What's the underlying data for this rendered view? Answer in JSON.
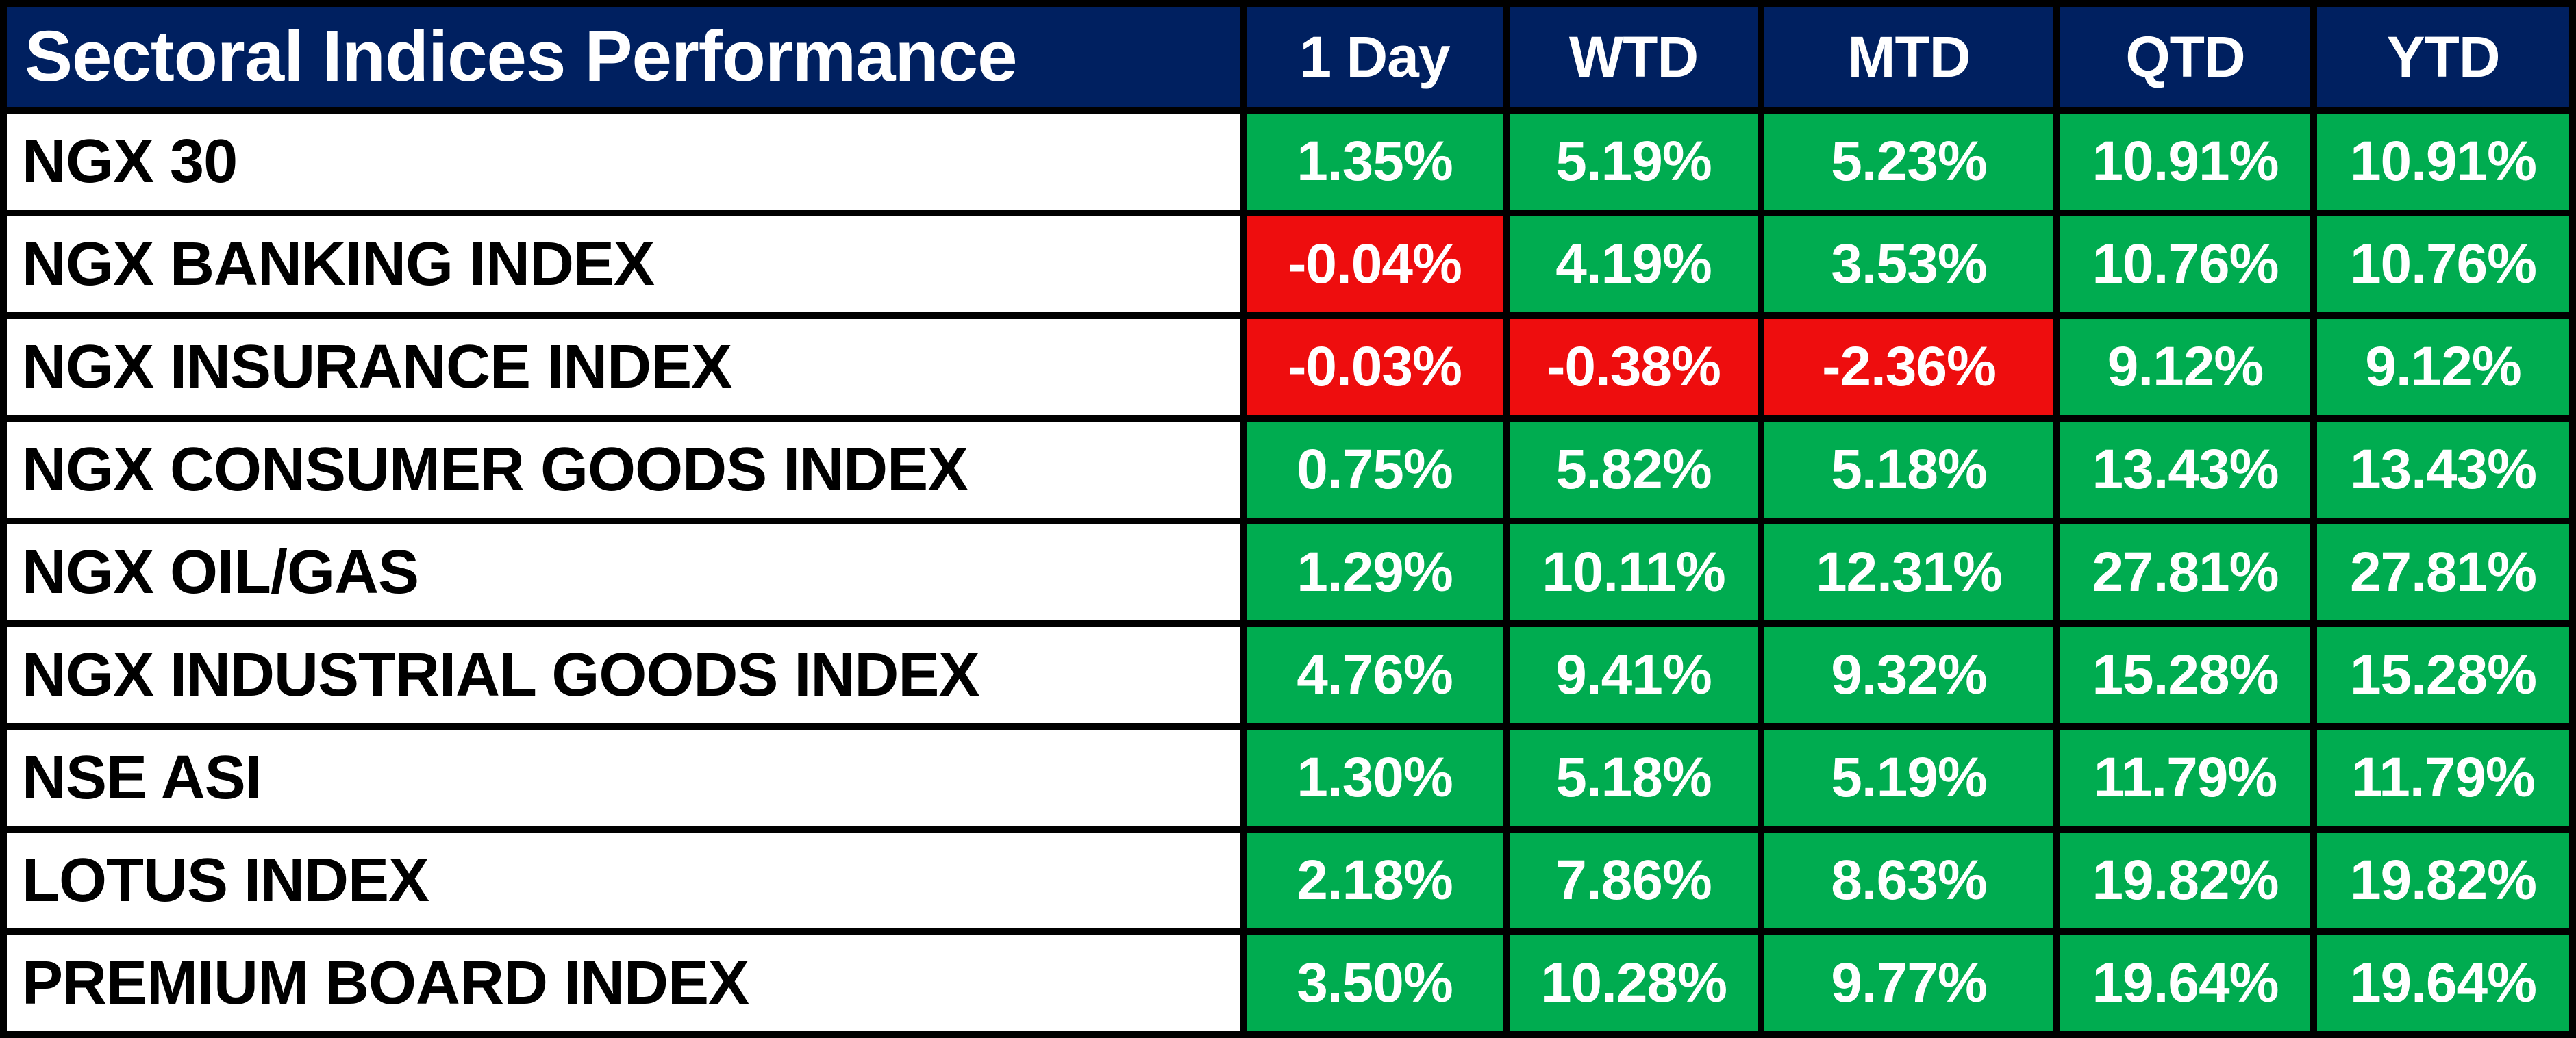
{
  "table": {
    "title": "Sectoral Indices Performance",
    "columns": [
      "1 Day",
      "WTD",
      "MTD",
      "QTD",
      "YTD"
    ],
    "rows": [
      {
        "label": "NGX 30",
        "values": [
          "1.35%",
          "5.19%",
          "5.23%",
          "10.91%",
          "10.91%"
        ]
      },
      {
        "label": "NGX BANKING INDEX",
        "values": [
          "-0.04%",
          "4.19%",
          "3.53%",
          "10.76%",
          "10.76%"
        ]
      },
      {
        "label": "NGX INSURANCE INDEX",
        "values": [
          "-0.03%",
          "-0.38%",
          "-2.36%",
          "9.12%",
          "9.12%"
        ]
      },
      {
        "label": "NGX CONSUMER GOODS INDEX",
        "values": [
          "0.75%",
          "5.82%",
          "5.18%",
          "13.43%",
          "13.43%"
        ]
      },
      {
        "label": "NGX OIL/GAS",
        "values": [
          "1.29%",
          "10.11%",
          "12.31%",
          "27.81%",
          "27.81%"
        ]
      },
      {
        "label": "NGX INDUSTRIAL GOODS INDEX",
        "values": [
          "4.76%",
          "9.41%",
          "9.32%",
          "15.28%",
          "15.28%"
        ]
      },
      {
        "label": "NSE ASI",
        "values": [
          "1.30%",
          "5.18%",
          "5.19%",
          "11.79%",
          "11.79%"
        ]
      },
      {
        "label": "LOTUS INDEX",
        "values": [
          "2.18%",
          "7.86%",
          "8.63%",
          "19.82%",
          "19.82%"
        ]
      },
      {
        "label": "PREMIUM BOARD INDEX",
        "values": [
          "3.50%",
          "10.28%",
          "9.77%",
          "19.64%",
          "19.64%"
        ]
      }
    ],
    "colors": {
      "header_bg": "#002060",
      "header_text": "#ffffff",
      "positive_bg": "#00AC50",
      "negative_bg": "#EE0D0E",
      "value_text": "#ffffff",
      "label_bg": "#ffffff",
      "label_text": "#000000",
      "grid_border": "#000000"
    }
  },
  "chart_data": {
    "type": "table",
    "title": "Sectoral Indices Performance",
    "columns": [
      "1 Day",
      "WTD",
      "MTD",
      "QTD",
      "YTD"
    ],
    "rows": [
      {
        "name": "NGX 30",
        "values_pct": [
          1.35,
          5.19,
          5.23,
          10.91,
          10.91
        ]
      },
      {
        "name": "NGX BANKING INDEX",
        "values_pct": [
          -0.04,
          4.19,
          3.53,
          10.76,
          10.76
        ]
      },
      {
        "name": "NGX INSURANCE INDEX",
        "values_pct": [
          -0.03,
          -0.38,
          -2.36,
          9.12,
          9.12
        ]
      },
      {
        "name": "NGX CONSUMER GOODS INDEX",
        "values_pct": [
          0.75,
          5.82,
          5.18,
          13.43,
          13.43
        ]
      },
      {
        "name": "NGX OIL/GAS",
        "values_pct": [
          1.29,
          10.11,
          12.31,
          27.81,
          27.81
        ]
      },
      {
        "name": "NGX INDUSTRIAL GOODS INDEX",
        "values_pct": [
          4.76,
          9.41,
          9.32,
          15.28,
          15.28
        ]
      },
      {
        "name": "NSE ASI",
        "values_pct": [
          1.3,
          5.18,
          5.19,
          11.79,
          11.79
        ]
      },
      {
        "name": "LOTUS INDEX",
        "values_pct": [
          2.18,
          7.86,
          8.63,
          19.82,
          19.82
        ]
      },
      {
        "name": "PREMIUM BOARD INDEX",
        "values_pct": [
          3.5,
          10.28,
          9.77,
          19.64,
          19.64
        ]
      }
    ],
    "color_coding": "green cell = positive value, red cell = negative value"
  }
}
